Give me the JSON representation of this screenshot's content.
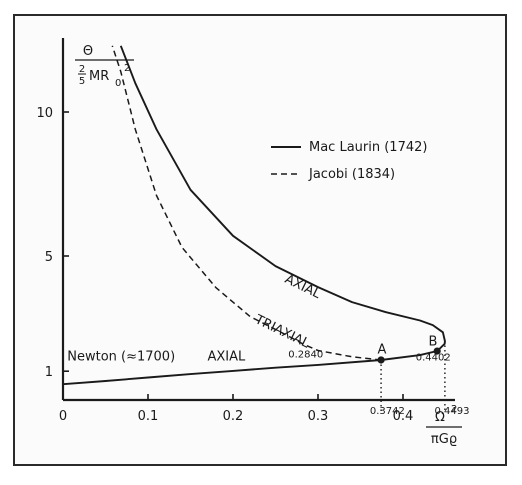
{
  "chart_data": {
    "type": "line",
    "xlim": [
      0,
      0.5
    ],
    "ylim": [
      0,
      12.3
    ],
    "x_ticks": [
      "0",
      "0.1",
      "0.2",
      "0.3",
      "0.4"
    ],
    "y_ticks": [
      "1",
      "5",
      "10"
    ],
    "y_label": {
      "numerator": "Θ",
      "denominator": "MR",
      "coefficient": "2/5",
      "subscript": "0",
      "superscript": "2"
    },
    "x_label": {
      "numerator": "Ω",
      "superscript": "2",
      "denominator": "πGϱ"
    },
    "legend": {
      "position": "top-right",
      "entries": [
        {
          "name": "Mac Laurin (1742)",
          "style": "solid"
        },
        {
          "name": "Jacobi (1834)",
          "style": "dashed"
        }
      ]
    },
    "series": [
      {
        "name": "Mac Laurin (1742)",
        "style": "solid",
        "points": [
          [
            0,
            0.55
          ],
          [
            0.05,
            0.66
          ],
          [
            0.1,
            0.78
          ],
          [
            0.15,
            0.9
          ],
          [
            0.2,
            1.01
          ],
          [
            0.25,
            1.12
          ],
          [
            0.3,
            1.22
          ],
          [
            0.3742,
            1.39
          ],
          [
            0.42,
            1.56
          ],
          [
            0.4402,
            1.7
          ],
          [
            0.449,
            1.95
          ],
          [
            0.4493,
            2.05
          ],
          [
            0.447,
            2.35
          ],
          [
            0.435,
            2.6
          ],
          [
            0.42,
            2.76
          ],
          [
            0.38,
            3.05
          ],
          [
            0.34,
            3.4
          ],
          [
            0.3,
            3.92
          ],
          [
            0.25,
            4.65
          ],
          [
            0.2,
            5.7
          ],
          [
            0.15,
            7.3
          ],
          [
            0.11,
            9.4
          ],
          [
            0.085,
            11.0
          ],
          [
            0.068,
            12.3
          ]
        ]
      },
      {
        "name": "Jacobi (1834)",
        "style": "dashed",
        "points": [
          [
            0.3742,
            1.39
          ],
          [
            0.34,
            1.5
          ],
          [
            0.3,
            1.72
          ],
          [
            0.284,
            1.92
          ],
          [
            0.26,
            2.3
          ],
          [
            0.22,
            2.9
          ],
          [
            0.18,
            3.9
          ],
          [
            0.14,
            5.3
          ],
          [
            0.11,
            7.1
          ],
          [
            0.085,
            9.4
          ],
          [
            0.068,
            11.4
          ],
          [
            0.058,
            12.3
          ]
        ]
      }
    ],
    "annotations": [
      {
        "text": "Newton (≈1700)",
        "x": 0.005,
        "y": 1.38
      },
      {
        "text": "AXIAL",
        "x": 0.17,
        "y": 1.38
      },
      {
        "text": "AXIAL",
        "x": 0.26,
        "y": 4.1,
        "rotate": 26
      },
      {
        "text": "TRIAXIAL",
        "x": 0.225,
        "y": 2.7,
        "rotate": 26
      },
      {
        "text": "0.2840",
        "x": 0.265,
        "y": 1.48
      },
      {
        "text": "A",
        "x": 0.37,
        "y": 1.62
      },
      {
        "text": "B",
        "x": 0.43,
        "y": 1.9
      },
      {
        "text": "0.4402",
        "x": 0.415,
        "y": 1.38
      },
      {
        "text": "0.3742",
        "x": 0.361,
        "y": -0.48
      },
      {
        "text": "0.4493",
        "x": 0.437,
        "y": -0.48
      }
    ],
    "markers": [
      {
        "name": "A",
        "x": 0.3742,
        "y": 1.39
      },
      {
        "name": "B",
        "x": 0.4402,
        "y": 1.7
      }
    ],
    "vertical_markers": [
      {
        "x": 0.3742,
        "y": 1.39,
        "label": "0.3742"
      },
      {
        "x": 0.4493,
        "y": 2.05,
        "label": "0.4493"
      }
    ]
  }
}
